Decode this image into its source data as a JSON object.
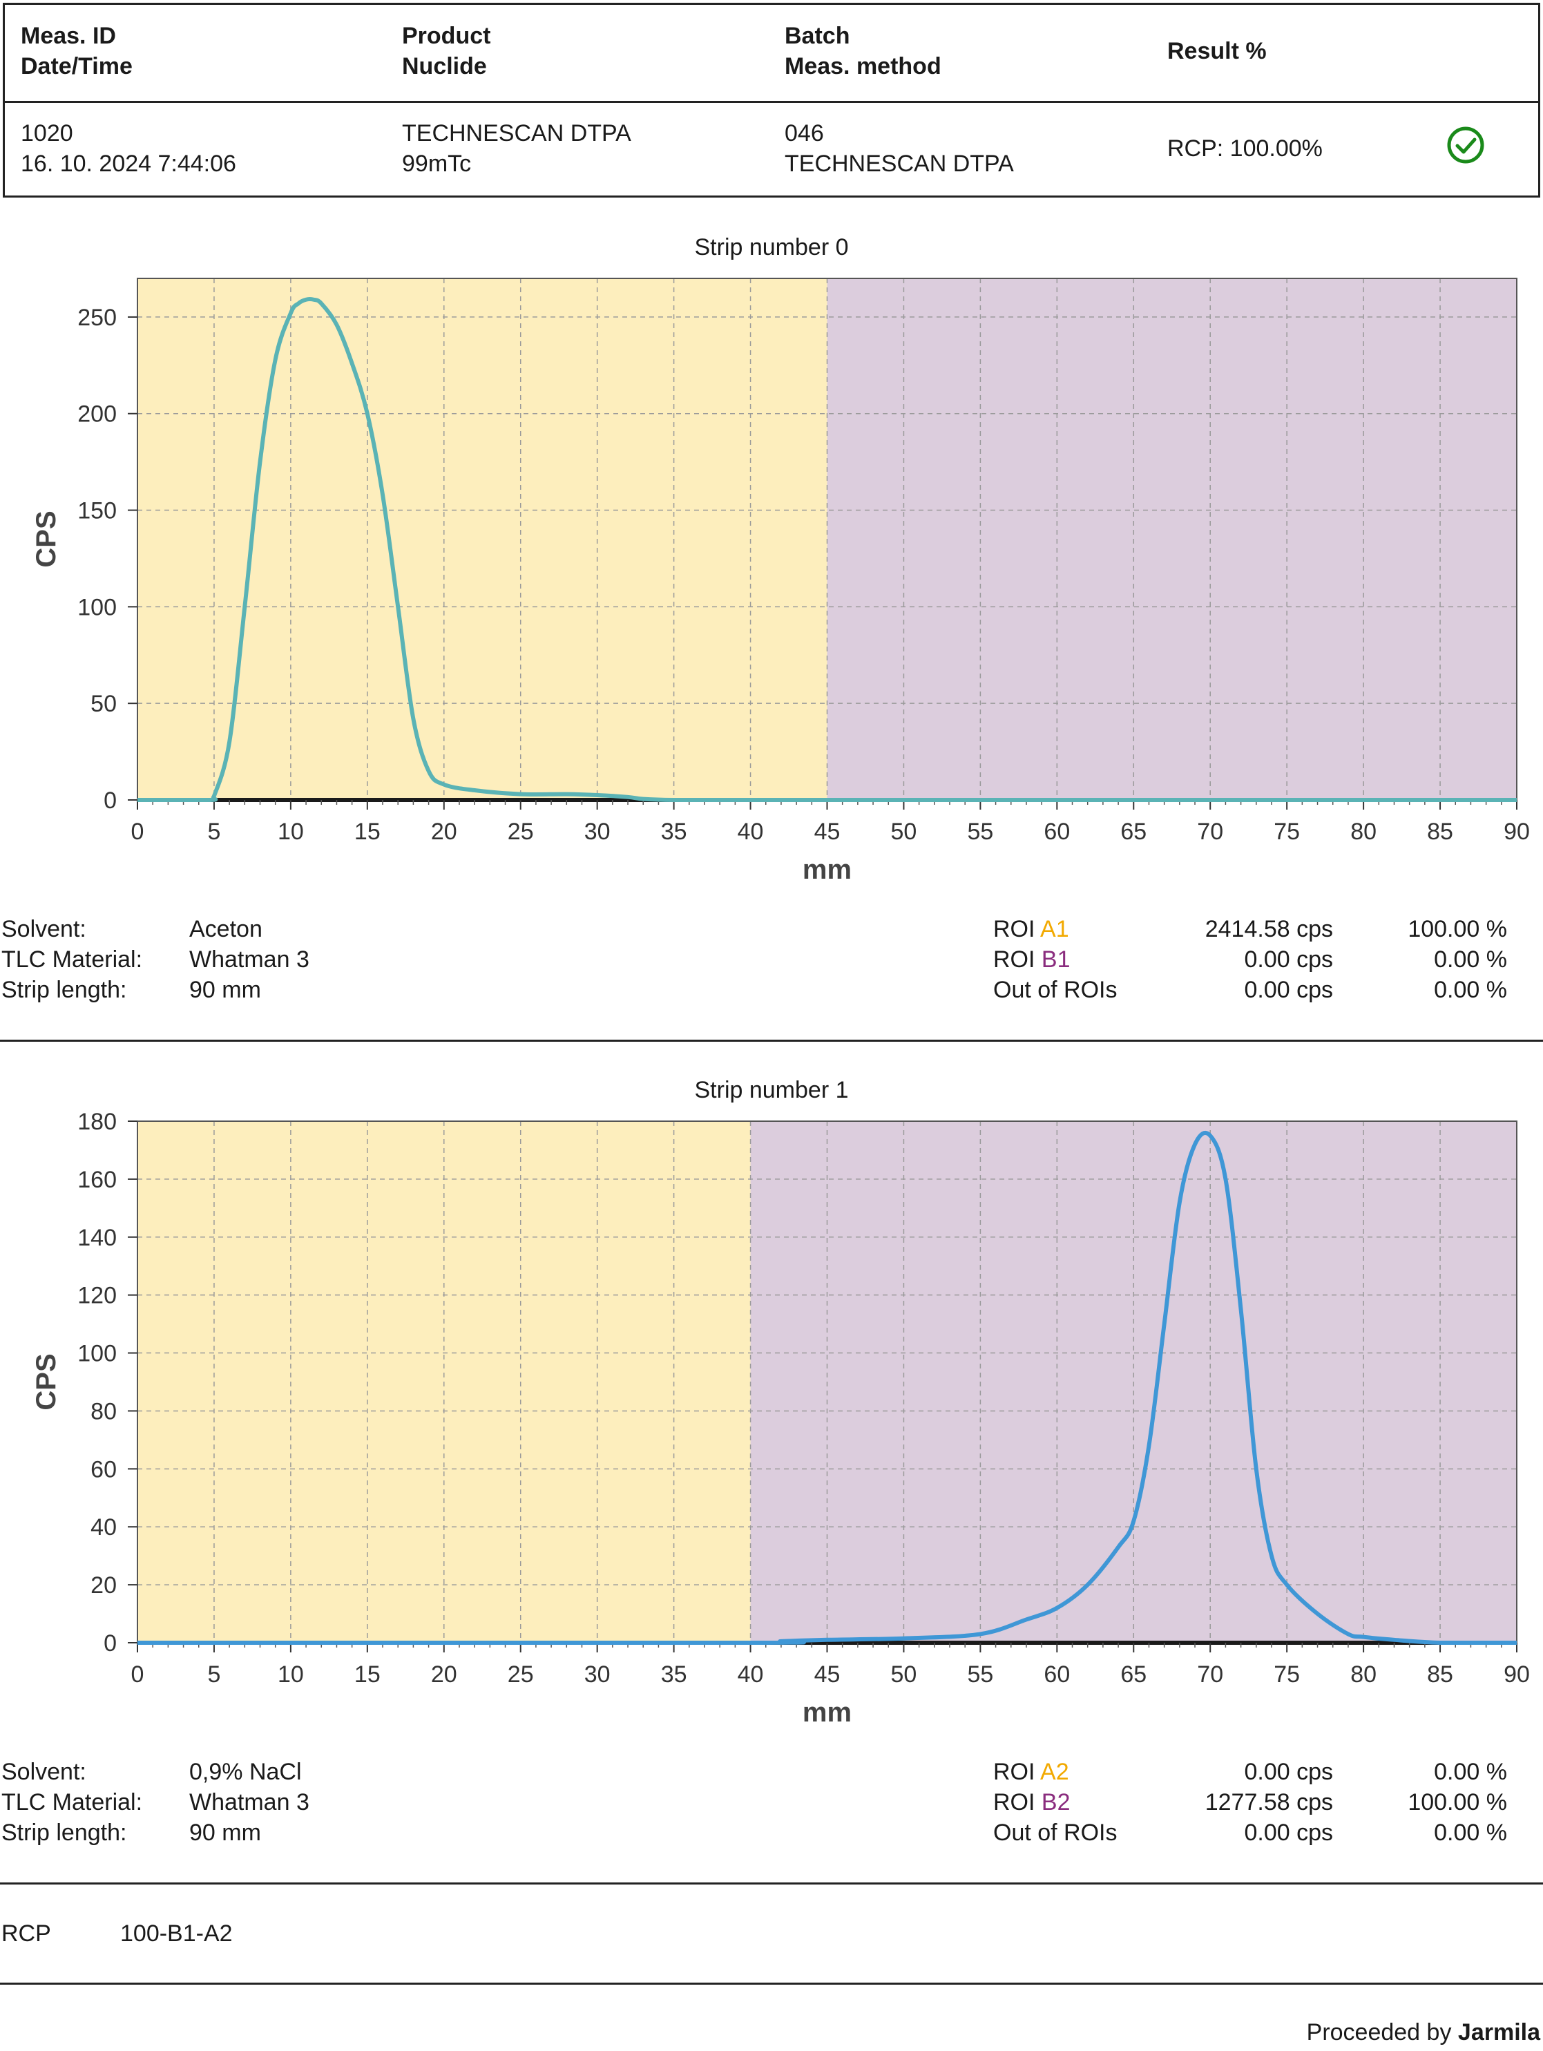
{
  "header": {
    "col1_h1": "Meas. ID",
    "col1_h2": "Date/Time",
    "col2_h1": "Product",
    "col2_h2": "Nuclide",
    "col3_h1": "Batch",
    "col3_h2": "Meas. method",
    "col4_h1": "Result %",
    "meas_id": "1020",
    "date_time": "16. 10. 2024 7:44:06",
    "product": "TECHNESCAN DTPA",
    "nuclide": "99mTc",
    "batch": "046",
    "meas_method": "TECHNESCAN DTPA",
    "result": "RCP: 100.00%",
    "status_icon": "check-circle-icon",
    "status_color": "#1a8a1a"
  },
  "strips": [
    {
      "solvent_label": "Solvent:",
      "solvent": "Aceton",
      "tlc_label": "TLC Material:",
      "tlc": "Whatman 3",
      "length_label": "Strip length:",
      "length": "90 mm",
      "roi_a_prefix": "ROI ",
      "roi_a_name": "A1",
      "roi_a_cps": "2414.58 cps",
      "roi_a_pct": "100.00 %",
      "roi_b_prefix": "ROI ",
      "roi_b_name": "B1",
      "roi_b_cps": "0.00 cps",
      "roi_b_pct": "0.00 %",
      "out_label": "Out of ROIs",
      "out_cps": "0.00 cps",
      "out_pct": "0.00 %"
    },
    {
      "solvent_label": "Solvent:",
      "solvent": "0,9% NaCl",
      "tlc_label": "TLC Material:",
      "tlc": "Whatman 3",
      "length_label": "Strip length:",
      "length": "90 mm",
      "roi_a_prefix": "ROI ",
      "roi_a_name": "A2",
      "roi_a_cps": "0.00 cps",
      "roi_a_pct": "0.00 %",
      "roi_b_prefix": "ROI ",
      "roi_b_name": "B2",
      "roi_b_cps": "1277.58 cps",
      "roi_b_pct": "100.00 %",
      "out_label": "Out of ROIs",
      "out_cps": "0.00 cps",
      "out_pct": "0.00 %"
    }
  ],
  "footer": {
    "rcp_label": "RCP",
    "rcp_value": "100-B1-A2",
    "proceeded_prefix": "Proceeded by ",
    "proceeded_name": "Jarmila"
  },
  "colors": {
    "roi_a_fill": "#fdeebd",
    "roi_b_fill": "#dccddd",
    "roi_a_text": "#f2a900",
    "roi_b_text": "#8a2c7e",
    "line0": "#5ab3b5",
    "line1": "#3f97d6"
  },
  "chart_data": [
    {
      "type": "line",
      "title": "Strip number 0",
      "xlabel": "mm",
      "ylabel": "CPS",
      "xlim": [
        0,
        90
      ],
      "ylim": [
        0,
        270
      ],
      "xticks": [
        0,
        5,
        10,
        15,
        20,
        25,
        30,
        35,
        40,
        45,
        50,
        55,
        60,
        65,
        70,
        75,
        80,
        85,
        90
      ],
      "yticks": [
        0,
        50,
        100,
        150,
        200,
        250
      ],
      "grid": true,
      "roi_regions": [
        {
          "name": "A1",
          "from": 0,
          "to": 45
        },
        {
          "name": "B1",
          "from": 45,
          "to": 90
        }
      ],
      "x": [
        0,
        4.7,
        5,
        6,
        7,
        8,
        9,
        10,
        10.5,
        11,
        11.5,
        12,
        13,
        14,
        15,
        16,
        17,
        18,
        19,
        20,
        22,
        25,
        28,
        30,
        32,
        33,
        35,
        40,
        45,
        90
      ],
      "y": [
        0,
        0,
        2,
        30,
        100,
        175,
        228,
        252,
        257,
        259,
        259,
        257,
        246,
        226,
        200,
        158,
        100,
        42,
        15,
        8,
        5,
        3,
        3,
        2.5,
        1.5,
        0.5,
        0,
        0,
        0,
        0
      ]
    },
    {
      "type": "line",
      "title": "Strip number 1",
      "xlabel": "mm",
      "ylabel": "CPS",
      "xlim": [
        0,
        90
      ],
      "ylim": [
        0,
        180
      ],
      "xticks": [
        0,
        5,
        10,
        15,
        20,
        25,
        30,
        35,
        40,
        45,
        50,
        55,
        60,
        65,
        70,
        75,
        80,
        85,
        90
      ],
      "yticks": [
        0,
        20,
        40,
        60,
        80,
        100,
        120,
        140,
        160,
        180
      ],
      "grid": true,
      "roi_regions": [
        {
          "name": "A2",
          "from": 0,
          "to": 40
        },
        {
          "name": "B2",
          "from": 40,
          "to": 90
        }
      ],
      "x": [
        0,
        40,
        42,
        45,
        50,
        55,
        58,
        60,
        62,
        64,
        65,
        66,
        67,
        68,
        69,
        70,
        71,
        72,
        73,
        74,
        75,
        77,
        79,
        80,
        82,
        85,
        90
      ],
      "y": [
        0,
        0,
        0.5,
        1,
        1.5,
        3,
        8,
        12,
        20,
        33,
        42,
        68,
        110,
        152,
        172,
        175,
        160,
        115,
        60,
        30,
        20,
        10,
        3,
        2,
        1,
        0,
        0
      ]
    }
  ]
}
